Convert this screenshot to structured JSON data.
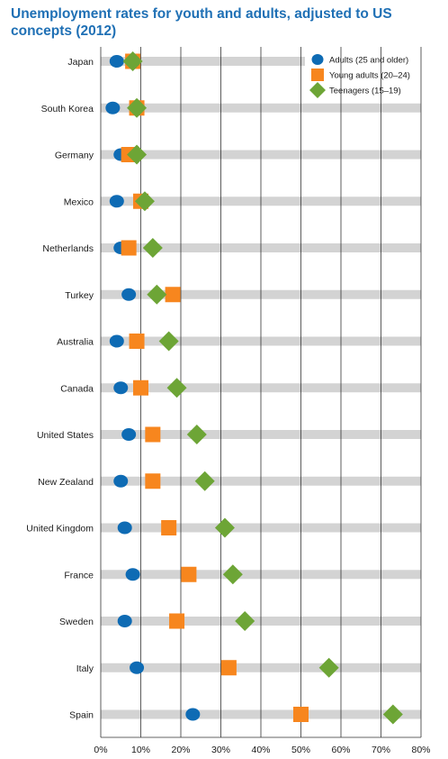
{
  "chart_data": {
    "type": "scatter",
    "title": "Unemployment rates for youth and adults, adjusted to US concepts (2012)",
    "categories": [
      "Japan",
      "South Korea",
      "Germany",
      "Mexico",
      "Netherlands",
      "Turkey",
      "Australia",
      "Canada",
      "United States",
      "New Zealand",
      "United Kingdom",
      "France",
      "Sweden",
      "Italy",
      "Spain"
    ],
    "series": [
      {
        "name": "Adults (25 and older)",
        "marker": "circle",
        "color": "#0e6bb4",
        "values": [
          4.0,
          3.0,
          5.0,
          4.0,
          5.0,
          7.0,
          4.0,
          5.0,
          7.0,
          5.0,
          6.0,
          8.0,
          6.0,
          9.0,
          23.0
        ]
      },
      {
        "name": "Young adults (20–24)",
        "marker": "square",
        "color": "#f7861e",
        "values": [
          8.0,
          9.0,
          7.0,
          10.0,
          7.0,
          18.0,
          9.0,
          10.0,
          13.0,
          13.0,
          17.0,
          22.0,
          19.0,
          32.0,
          50.0
        ]
      },
      {
        "name": "Teenagers (15–19)",
        "marker": "diamond",
        "color": "#6da536",
        "values": [
          8.0,
          9.0,
          9.0,
          11.0,
          13.0,
          14.0,
          17.0,
          19.0,
          24.0,
          26.0,
          31.0,
          33.0,
          36.0,
          57.0,
          73.0
        ]
      }
    ],
    "bar_extent": [
      51,
      80,
      80,
      80,
      80,
      80,
      80,
      80,
      80,
      80,
      80,
      80,
      80,
      80,
      80
    ],
    "xlim": [
      0,
      80
    ],
    "x_ticks": [
      "0%",
      "10%",
      "20%",
      "30%",
      "40%",
      "50%",
      "60%",
      "70%",
      "80%"
    ],
    "grid": true,
    "legend_position": "top-right"
  }
}
